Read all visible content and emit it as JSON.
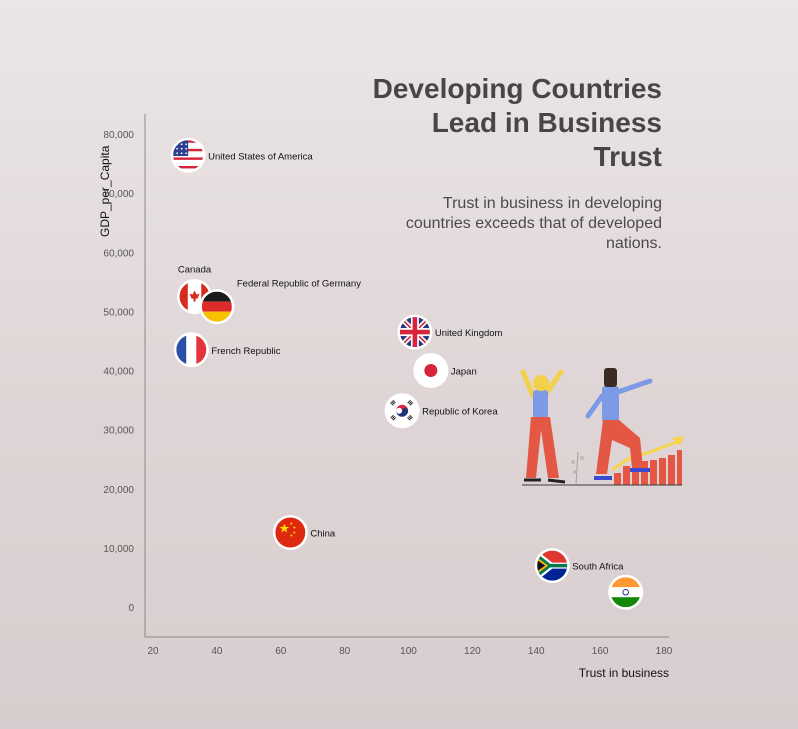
{
  "chart_data": {
    "type": "scatter",
    "title": "Developing Countries\nLead in Business\nTrust",
    "subtitle": "Trust in business in developing\ncountries exceeds that of developed\nnations.",
    "xlabel": "Trust in business",
    "ylabel": "GDP_per_Capita",
    "xlim": [
      18,
      182
    ],
    "ylim": [
      -5000,
      83000
    ],
    "xticks": [
      20,
      40,
      60,
      80,
      100,
      120,
      140,
      160,
      180
    ],
    "yticks": [
      0,
      10000,
      20000,
      30000,
      40000,
      50000,
      60000,
      70000,
      80000
    ],
    "ytick_labels": [
      "0",
      "10,000",
      "20,000",
      "30,000",
      "40,000",
      "50,000",
      "60,000",
      "70,000",
      "80,000"
    ],
    "grid": false,
    "points": [
      {
        "label": "United States of America",
        "x": 31,
        "y": 76400,
        "flag": "us-flag",
        "label_pos": "right"
      },
      {
        "label": "Canada",
        "x": 33,
        "y": 52500,
        "flag": "ca-flag",
        "label_pos": "above"
      },
      {
        "label": "Federal Republic of Germany",
        "x": 40,
        "y": 50800,
        "flag": "de-flag",
        "label_pos": "upper-right"
      },
      {
        "label": "French Republic",
        "x": 32,
        "y": 43500,
        "flag": "fr-flag",
        "label_pos": "right"
      },
      {
        "label": "United Kingdom",
        "x": 102,
        "y": 46500,
        "flag": "gb-flag",
        "label_pos": "right"
      },
      {
        "label": "Japan",
        "x": 107,
        "y": 40000,
        "flag": "jp-flag",
        "label_pos": "right"
      },
      {
        "label": "Republic of Korea",
        "x": 98,
        "y": 33200,
        "flag": "kr-flag",
        "label_pos": "right"
      },
      {
        "label": "China",
        "x": 63,
        "y": 12600,
        "flag": "cn-flag",
        "label_pos": "right"
      },
      {
        "label": "South Africa",
        "x": 145,
        "y": 7000,
        "flag": "za-flag",
        "label_pos": "right"
      },
      {
        "label": "",
        "x": 168,
        "y": 2500,
        "flag": "in-flag",
        "label_pos": "none"
      }
    ]
  }
}
